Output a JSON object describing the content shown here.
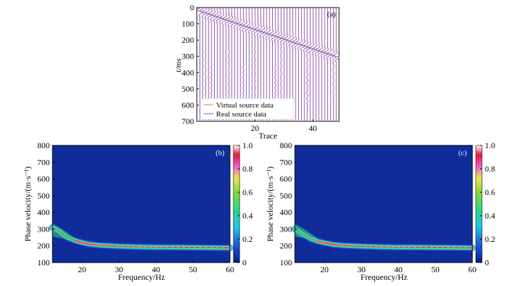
{
  "chart_data": [
    {
      "id": "a",
      "type": "line",
      "panel_label": "(a)",
      "xlabel": "Trace",
      "ylabel": "t/ms",
      "xticks": [
        20,
        40
      ],
      "yticks": [
        0,
        100,
        200,
        300,
        400,
        500,
        600,
        700
      ],
      "xlim": [
        0,
        49
      ],
      "ylim": [
        700,
        0
      ],
      "trace_count": 48,
      "arrival": {
        "start_ms": 20,
        "end_ms": 300
      },
      "series": [
        {
          "name": "Virtual source data",
          "color": "#e8606e"
        },
        {
          "name": "Real source data",
          "color": "#5a5ae0"
        }
      ]
    },
    {
      "id": "b",
      "type": "heatmap",
      "panel_label": "(b)",
      "xlabel": "Frequency/Hz",
      "ylabel": "Phase velocity/(m·s⁻¹)",
      "xlim": [
        12,
        60
      ],
      "ylim": [
        100,
        800
      ],
      "xticks": [
        20,
        30,
        40,
        50,
        60
      ],
      "yticks": [
        100,
        200,
        300,
        400,
        500,
        600,
        700,
        800
      ],
      "colorbar": {
        "min": 0,
        "max": 1.0,
        "ticks": [
          "0",
          "0.2",
          "0.4",
          "0.6",
          "0.8",
          "1.0"
        ]
      },
      "dispersion_curve": {
        "frequency": [
          12,
          14,
          16,
          18,
          20,
          22,
          25,
          30,
          35,
          40,
          45,
          50,
          55,
          60
        ],
        "velocity": [
          310,
          285,
          250,
          232,
          220,
          210,
          203,
          197,
          194,
          192,
          191,
          190,
          189,
          188
        ]
      }
    },
    {
      "id": "c",
      "type": "heatmap",
      "panel_label": "(c)",
      "xlabel": "Frequency/Hz",
      "ylabel": "Phase velocity/(m·s⁻¹)",
      "xlim": [
        12,
        60
      ],
      "ylim": [
        100,
        800
      ],
      "xticks": [
        20,
        30,
        40,
        50,
        60
      ],
      "yticks": [
        100,
        200,
        300,
        400,
        500,
        600,
        700,
        800
      ],
      "colorbar": {
        "min": 0,
        "max": 1.0,
        "ticks": [
          "0",
          "0.2",
          "0.4",
          "0.6",
          "0.8",
          "1.0"
        ]
      },
      "dispersion_curve": {
        "frequency": [
          12,
          14,
          16,
          18,
          20,
          22,
          25,
          30,
          35,
          40,
          45,
          50,
          55,
          60
        ],
        "velocity": [
          300,
          272,
          245,
          228,
          218,
          209,
          202,
          197,
          194,
          192,
          191,
          190,
          189,
          188
        ]
      }
    }
  ]
}
